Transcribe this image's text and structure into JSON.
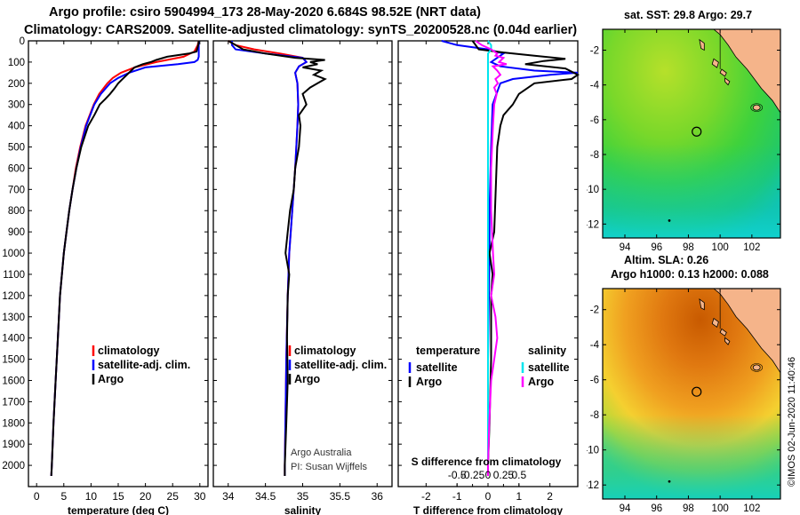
{
  "header": {
    "line1": "Argo profile: csiro 5904994_173 28-May-2020 6.684S 98.52E (NRT data)",
    "line2": "Climatology: CARS2009. Satellite-adjusted climatology: synTS_20200528.nc (0.04d earlier)"
  },
  "colors": {
    "climatology": "#ff0000",
    "satellite": "#0000ff",
    "argo": "#000000",
    "sal_satellite": "#00e5ee",
    "sal_argo": "#ff00ff",
    "land": "#f5b48a"
  },
  "chart_data": [
    {
      "type": "line",
      "title": "",
      "xlabel": "temperature (deg C)",
      "ylabel": "",
      "xlim": [
        -1.5,
        31.5
      ],
      "ylim": [
        2100,
        0
      ],
      "x_ticks": [
        "0",
        "5",
        "10",
        "15",
        "20",
        "25",
        "30"
      ],
      "x_tick_values": [
        0,
        5,
        10,
        15,
        20,
        25,
        30
      ],
      "y_ticks": [
        "0",
        "100",
        "200",
        "300",
        "400",
        "500",
        "600",
        "700",
        "800",
        "900",
        "1000",
        "1100",
        "1200",
        "1300",
        "1400",
        "1500",
        "1600",
        "1700",
        "1800",
        "1900",
        "2000"
      ],
      "y_tick_values": [
        0,
        100,
        200,
        300,
        400,
        500,
        600,
        700,
        800,
        900,
        1000,
        1100,
        1200,
        1300,
        1400,
        1500,
        1600,
        1700,
        1800,
        1900,
        2000
      ],
      "legend": [
        "climatology",
        "satellite-adj. clim.",
        "Argo"
      ],
      "series": [
        {
          "name": "climatology",
          "color": "#ff0000",
          "depth": [
            0,
            20,
            50,
            75,
            100,
            125,
            150,
            175,
            200,
            250,
            300,
            400,
            500,
            600,
            700,
            800,
            900,
            1000,
            1200,
            1400,
            1600,
            1800,
            2000,
            2050
          ],
          "values": [
            29.8,
            29.6,
            29.0,
            27.0,
            22.0,
            18.0,
            15.5,
            14.0,
            13.0,
            11.5,
            10.5,
            9.0,
            8.0,
            7.2,
            6.6,
            6.0,
            5.5,
            5.0,
            4.3,
            3.9,
            3.5,
            3.1,
            2.8,
            2.7
          ]
        },
        {
          "name": "satellite-adj. clim.",
          "color": "#0000ff",
          "depth": [
            0,
            20,
            50,
            75,
            90,
            100,
            110,
            125,
            150,
            175,
            200,
            250,
            300,
            400,
            500,
            600,
            700,
            800,
            900,
            1000,
            1200,
            1400,
            1600,
            1800,
            2000,
            2050
          ],
          "values": [
            29.8,
            29.8,
            29.8,
            29.8,
            29.6,
            29.0,
            26.0,
            20.0,
            17.0,
            15.0,
            13.5,
            11.8,
            10.6,
            9.1,
            8.1,
            7.3,
            6.6,
            6.0,
            5.5,
            5.0,
            4.3,
            3.9,
            3.5,
            3.1,
            2.8,
            2.7
          ]
        },
        {
          "name": "Argo",
          "color": "#000000",
          "depth": [
            0,
            20,
            50,
            60,
            75,
            90,
            100,
            110,
            125,
            150,
            175,
            200,
            225,
            250,
            275,
            300,
            350,
            400,
            500,
            600,
            700,
            800,
            900,
            1000,
            1200,
            1400,
            1600,
            1800,
            2000,
            2050
          ],
          "values": [
            29.8,
            29.7,
            29.4,
            28.0,
            24.0,
            22.0,
            21.0,
            19.5,
            18.0,
            17.0,
            16.0,
            15.0,
            14.3,
            13.5,
            12.6,
            11.6,
            10.6,
            9.5,
            8.2,
            7.3,
            6.6,
            6.0,
            5.5,
            5.0,
            4.3,
            3.9,
            3.5,
            3.1,
            2.8,
            2.7
          ]
        }
      ]
    },
    {
      "type": "line",
      "title": "",
      "xlabel": "salinity",
      "ylabel": "",
      "xlim": [
        33.8,
        36.2
      ],
      "ylim": [
        2100,
        0
      ],
      "x_ticks": [
        "34",
        "34.5",
        "35",
        "35.5",
        "36"
      ],
      "x_tick_values": [
        34,
        34.5,
        35,
        35.5,
        36
      ],
      "legend": [
        "climatology",
        "satellite-adj. clim.",
        "Argo"
      ],
      "series": [
        {
          "name": "climatology",
          "color": "#ff0000",
          "depth": [
            0,
            20,
            40,
            60,
            80,
            100,
            120,
            150,
            200,
            300,
            400,
            600,
            800,
            1000,
            1200,
            1500,
            2000,
            2050
          ],
          "values": [
            34.0,
            34.1,
            34.35,
            34.7,
            35.0,
            35.05,
            34.95,
            34.9,
            34.93,
            34.94,
            34.93,
            34.9,
            34.86,
            34.82,
            34.8,
            34.78,
            34.76,
            34.76
          ]
        },
        {
          "name": "satellite-adj. clim.",
          "color": "#0000ff",
          "depth": [
            0,
            20,
            40,
            60,
            80,
            100,
            120,
            150,
            200,
            300,
            400,
            600,
            800,
            1000,
            1200,
            1500,
            2000,
            2050
          ],
          "values": [
            34.05,
            34.05,
            34.1,
            34.5,
            35.0,
            35.05,
            34.95,
            34.9,
            34.93,
            34.94,
            34.93,
            34.9,
            34.86,
            34.82,
            34.8,
            34.78,
            34.76,
            34.76
          ]
        },
        {
          "name": "Argo",
          "color": "#000000",
          "depth": [
            0,
            40,
            60,
            80,
            90,
            100,
            110,
            125,
            140,
            160,
            180,
            200,
            220,
            250,
            300,
            350,
            400,
            500,
            600,
            700,
            800,
            900,
            1000,
            1100,
            1200,
            1400,
            1600,
            1800,
            2000,
            2050
          ],
          "values": [
            34.0,
            34.2,
            34.5,
            34.9,
            35.3,
            35.1,
            35.2,
            35.0,
            35.25,
            35.15,
            35.3,
            35.2,
            35.1,
            35.0,
            35.05,
            34.95,
            34.97,
            34.95,
            34.9,
            34.88,
            34.83,
            34.8,
            34.77,
            34.82,
            34.8,
            34.79,
            34.8,
            34.78,
            34.76,
            34.76
          ]
        }
      ]
    },
    {
      "type": "line",
      "title": "",
      "xlabel": "T difference from climatology",
      "secondary_xlabel": "S difference from climatology",
      "xlim": [
        -2.9,
        2.9
      ],
      "ylim": [
        2100,
        0
      ],
      "x_ticks": [
        "-2",
        "-1",
        "0",
        "1",
        "2"
      ],
      "x_tick_values": [
        -2,
        -1,
        0,
        1,
        2
      ],
      "s_ticks": [
        "-0.5",
        "-0.25",
        "0",
        "0.25",
        "0.5"
      ],
      "s_tick_values": [
        -0.5,
        -0.25,
        0,
        0.25,
        0.5
      ],
      "legend_left_header": "temperature",
      "legend_right_header": "salinity",
      "legend": [
        "satellite",
        "Argo",
        "satellite",
        "Argo"
      ],
      "series": [
        {
          "name": "T satellite",
          "color": "#0000ff",
          "depth": [
            0,
            20,
            40,
            60,
            80,
            100,
            120,
            140,
            150,
            160,
            180,
            200,
            300,
            500,
            800,
            1000,
            1500,
            2000,
            2050
          ],
          "values": [
            -1.5,
            -1.0,
            0.0,
            0.5,
            0.3,
            0.1,
            0.4,
            1.5,
            2.9,
            2.0,
            0.8,
            0.4,
            0.15,
            0.1,
            0.05,
            0.05,
            0.0,
            0.0,
            0.0
          ]
        },
        {
          "name": "T Argo",
          "color": "#000000",
          "depth": [
            0,
            40,
            55,
            70,
            85,
            95,
            110,
            130,
            160,
            180,
            200,
            250,
            300,
            350,
            400,
            500,
            700,
            900,
            1000,
            1100,
            1200,
            1500,
            1800,
            2000,
            2050
          ],
          "values": [
            -0.5,
            -0.3,
            0.5,
            1.5,
            2.5,
            1.8,
            1.2,
            2.5,
            2.9,
            2.7,
            1.5,
            1.0,
            0.8,
            0.5,
            0.4,
            0.3,
            0.25,
            0.2,
            0.05,
            0.15,
            0.1,
            0.1,
            0.05,
            0.0,
            0.0
          ]
        },
        {
          "name": "S satellite",
          "color": "#00e5ee",
          "depth": [
            0,
            20,
            40,
            60,
            80,
            100,
            150,
            200,
            400,
            600,
            800,
            1000,
            1500,
            2000,
            2050
          ],
          "values": [
            0.0,
            0.05,
            0.05,
            0.0,
            0.0,
            0.0,
            0.0,
            0.0,
            0.0,
            0.0,
            0.0,
            0.0,
            0.0,
            0.0,
            0.0
          ]
        },
        {
          "name": "S Argo",
          "color": "#ff00ff",
          "depth": [
            0,
            20,
            40,
            50,
            60,
            70,
            80,
            100,
            110,
            120,
            140,
            160,
            180,
            200,
            220,
            250,
            300,
            400,
            600,
            800,
            1000,
            1100,
            1200,
            1300,
            1400,
            1500,
            1600,
            1800,
            2000,
            2050
          ],
          "values": [
            -0.2,
            -0.1,
            0.05,
            0.1,
            0.15,
            0.12,
            0.25,
            0.18,
            0.3,
            0.08,
            0.15,
            0.2,
            0.12,
            0.16,
            0.1,
            0.14,
            0.1,
            0.08,
            0.05,
            0.05,
            0.08,
            0.1,
            0.05,
            0.12,
            0.15,
            0.1,
            0.05,
            0.02,
            0.0,
            0.0
          ]
        }
      ]
    }
  ],
  "maps": [
    {
      "title": "sat. SST: 29.8 Argo: 29.7",
      "title2": "",
      "lon_ticks": [
        "94",
        "96",
        "98",
        "100",
        "102"
      ],
      "lon_tick_values": [
        94,
        96,
        98,
        100,
        102
      ],
      "lat_ticks": [
        "-2",
        "-4",
        "-6",
        "-8",
        "-10",
        "-12"
      ],
      "lat_tick_values": [
        -2,
        -4,
        -6,
        -8,
        -10,
        -12
      ],
      "lon_range": [
        92.6,
        103.8
      ],
      "lat_range": [
        -12.8,
        -0.8
      ],
      "float_lon": 98.52,
      "float_lat": -6.684
    },
    {
      "title": "Altim. SLA: 0.26",
      "title2": "Argo h1000: 0.13 h2000: 0.088",
      "lon_ticks": [
        "94",
        "96",
        "98",
        "100",
        "102"
      ],
      "lon_tick_values": [
        94,
        96,
        98,
        100,
        102
      ],
      "lat_ticks": [
        "-2",
        "-4",
        "-6",
        "-8",
        "-10",
        "-12"
      ],
      "lat_tick_values": [
        -2,
        -4,
        -6,
        -8,
        -10,
        -12
      ],
      "lon_range": [
        92.6,
        103.8
      ],
      "lat_range": [
        -12.8,
        -0.8
      ],
      "float_lon": 98.52,
      "float_lat": -6.684
    }
  ],
  "credits": {
    "argo_australia": "Argo Australia",
    "pi": "PI: Susan Wijffels",
    "stamp": "©IMOS 02-Jun-2020 11:40:46"
  }
}
